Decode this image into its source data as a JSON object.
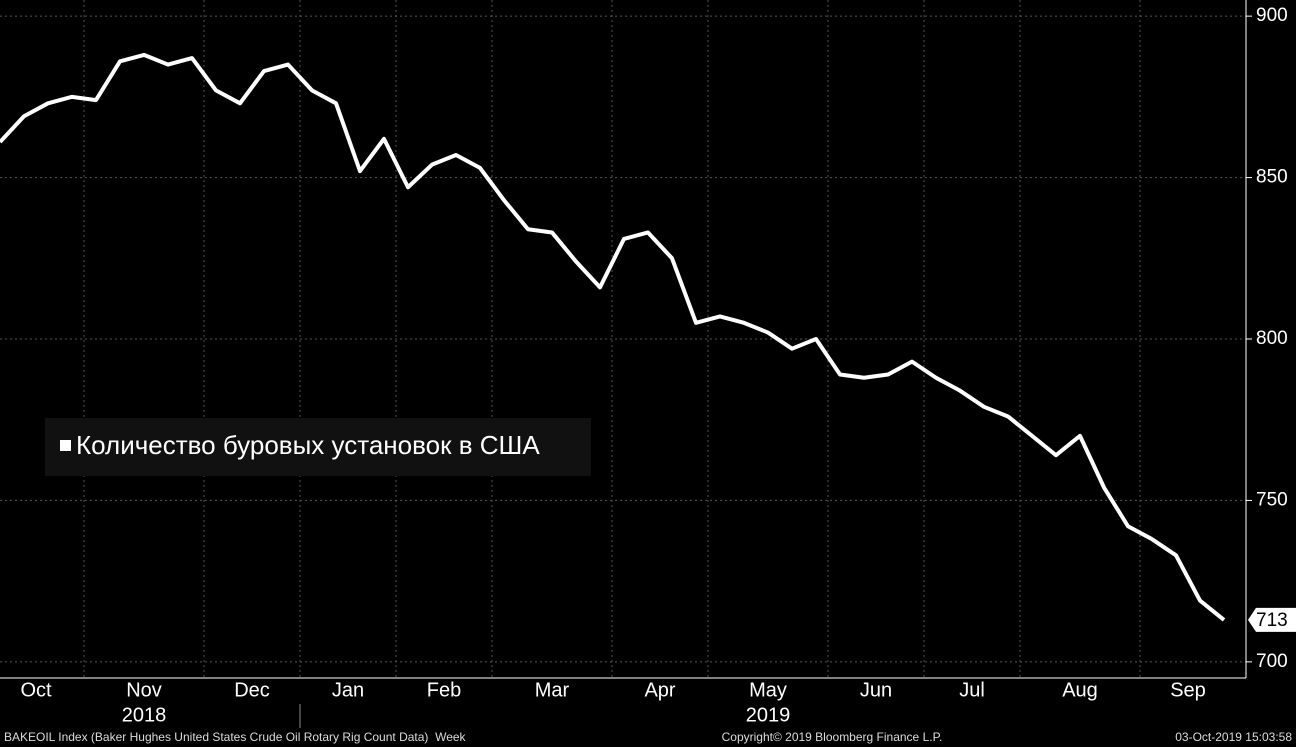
{
  "chart_data": {
    "type": "line",
    "categories": [
      "Oct",
      null,
      null,
      null,
      "Nov",
      null,
      null,
      null,
      null,
      "Dec",
      null,
      null,
      null,
      "Jan",
      null,
      null,
      null,
      "Feb",
      null,
      null,
      null,
      "Mar",
      null,
      null,
      null,
      null,
      "Apr",
      null,
      null,
      null,
      "May",
      null,
      null,
      null,
      null,
      "Jun",
      null,
      null,
      null,
      "Jul",
      null,
      null,
      null,
      "Aug",
      null,
      null,
      null,
      null,
      "Sep",
      null,
      null,
      null
    ],
    "year_labels": [
      "2018",
      "2019"
    ],
    "series": [
      {
        "name": "Количество буровых установок в США",
        "color": "#ffffff",
        "values": [
          861,
          869,
          873,
          875,
          874,
          886,
          888,
          885,
          887,
          877,
          873,
          883,
          885,
          877,
          873,
          852,
          862,
          847,
          854,
          857,
          853,
          843,
          834,
          833,
          824,
          816,
          831,
          833,
          825,
          805,
          807,
          805,
          802,
          797,
          800,
          789,
          788,
          789,
          793,
          788,
          784,
          779,
          776,
          770,
          764,
          770,
          754,
          742,
          738,
          733,
          719,
          713
        ]
      }
    ],
    "ylim": [
      695,
      905
    ],
    "yticks": [
      700,
      750,
      800,
      850,
      900
    ],
    "grid": true,
    "legend": "left",
    "footer": {
      "source": "BAKEOIL Index (Baker Hughes United States Crude Oil Rotary Rig Count Data)  Week",
      "copyright": "Copyright© 2019 Bloomberg Finance L.P.",
      "timestamp": "03-Oct-2019 15:03:58"
    }
  }
}
